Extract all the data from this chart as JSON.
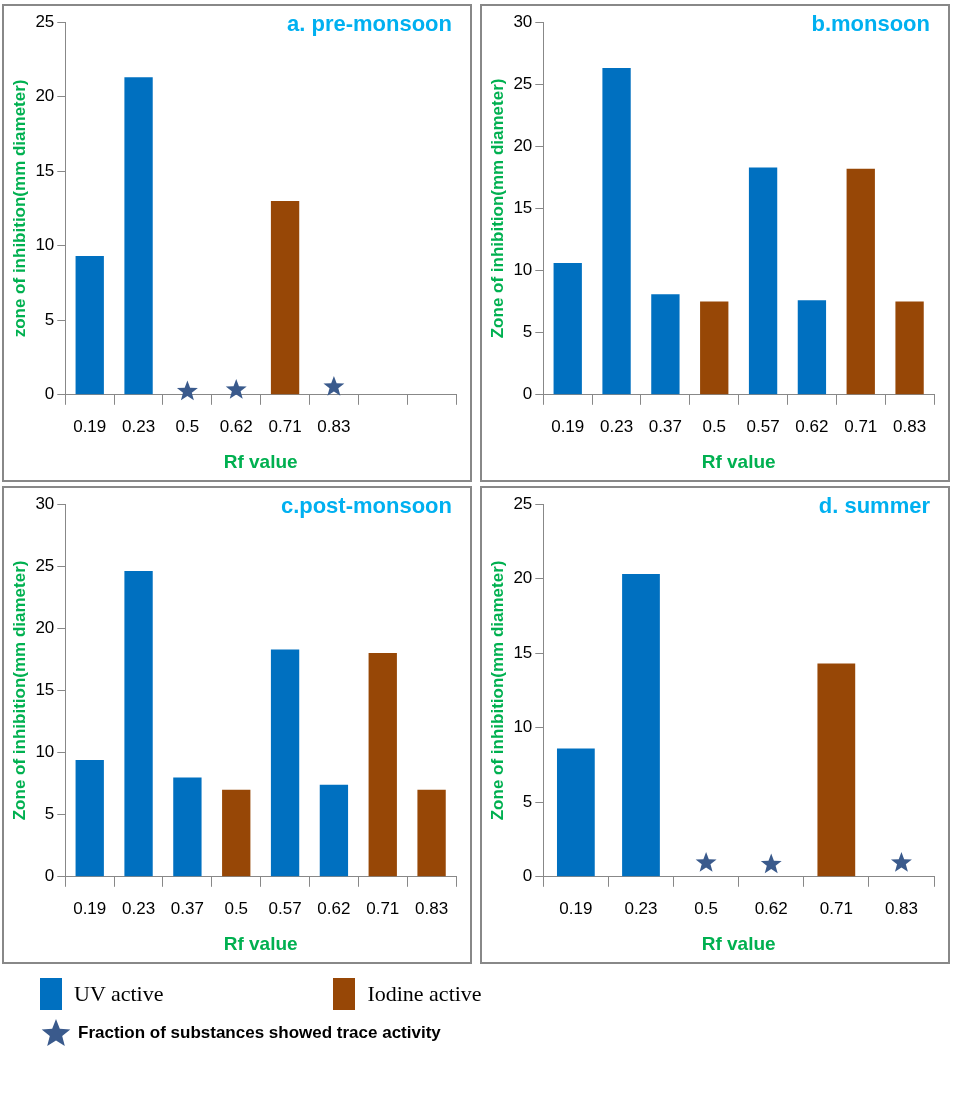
{
  "chart_data": [
    {
      "type": "bar",
      "title": "a. pre-monsoon",
      "xlabel": "Rf value",
      "ylabel": "zone of inhibition(mm diameter)",
      "categories": [
        "0.19",
        "0.23",
        "0.5",
        "0.62",
        "0.71",
        "0.83",
        null,
        null
      ],
      "stacked": true,
      "grid": false,
      "legend": false,
      "ylim": [
        0,
        25
      ],
      "yticks": [
        0,
        5,
        10,
        15,
        20,
        25
      ],
      "series": [
        {
          "color": "#0070c0",
          "values": [
            9.3,
            21.3,
            null,
            null,
            null,
            null,
            null,
            null
          ]
        },
        {
          "color": "#974706",
          "values": [
            null,
            null,
            null,
            null,
            13.0,
            null,
            null,
            null
          ]
        },
        {
          "type": "scatter",
          "color": "#3a5a8c",
          "marker": "star",
          "x": [
            "0.5",
            "0.62",
            "0.83"
          ],
          "values": [
            0.3,
            0.4,
            0.6
          ]
        }
      ]
    },
    {
      "type": "bar",
      "title": "b.monsoon",
      "xlabel": "Rf value",
      "ylabel": "Zone of inhibition(mm diameter)",
      "categories": [
        "0.19",
        "0.23",
        "0.37",
        "0.5",
        "0.57",
        "0.62",
        "0.71",
        "0.83"
      ],
      "stacked": true,
      "grid": false,
      "legend": false,
      "ylim": [
        0,
        30
      ],
      "yticks": [
        0,
        5,
        10,
        15,
        20,
        25,
        30
      ],
      "series": [
        {
          "color": "#0070c0",
          "values": [
            10.6,
            26.3,
            8.1,
            null,
            18.3,
            7.6,
            null,
            null
          ]
        },
        {
          "color": "#974706",
          "values": [
            null,
            null,
            null,
            7.5,
            null,
            null,
            18.2,
            7.5
          ]
        }
      ]
    },
    {
      "type": "bar",
      "title": "c.post-monsoon",
      "xlabel": "Rf value",
      "ylabel": "Zone of inhibition(mm diameter)",
      "categories": [
        "0.19",
        "0.23",
        "0.37",
        "0.5",
        "0.57",
        "0.62",
        "0.71",
        "0.83"
      ],
      "stacked": true,
      "grid": false,
      "legend": false,
      "ylim": [
        0,
        30
      ],
      "yticks": [
        0,
        5,
        10,
        15,
        20,
        25,
        30
      ],
      "series": [
        {
          "color": "#0070c0",
          "values": [
            9.4,
            24.6,
            8.0,
            null,
            18.3,
            7.4,
            null,
            null
          ]
        },
        {
          "color": "#974706",
          "values": [
            null,
            null,
            null,
            7.0,
            null,
            null,
            18.0,
            7.0
          ]
        }
      ]
    },
    {
      "type": "bar",
      "title": "d. summer",
      "xlabel": "Rf value",
      "ylabel": "Zone of inhibition(mm diameter)",
      "categories": [
        "0.19",
        "0.23",
        "0.5",
        "0.62",
        "0.71",
        "0.83"
      ],
      "stacked": true,
      "grid": false,
      "legend": "bottom",
      "ylim": [
        0,
        25
      ],
      "yticks": [
        0,
        5,
        10,
        15,
        20,
        25
      ],
      "series": [
        {
          "name": "UV active",
          "color": "#0070c0",
          "values": [
            8.6,
            20.3,
            null,
            null,
            null,
            null
          ]
        },
        {
          "name": "Iodine active",
          "color": "#974706",
          "values": [
            null,
            null,
            null,
            null,
            14.3,
            null
          ]
        },
        {
          "type": "scatter",
          "name": "Fraction of substances showed trace activity",
          "color": "#3a5a8c",
          "marker": "star",
          "x": [
            "0.5",
            "0.62",
            "0.83"
          ],
          "values": [
            1.0,
            0.9,
            1.0
          ]
        }
      ]
    }
  ]
}
